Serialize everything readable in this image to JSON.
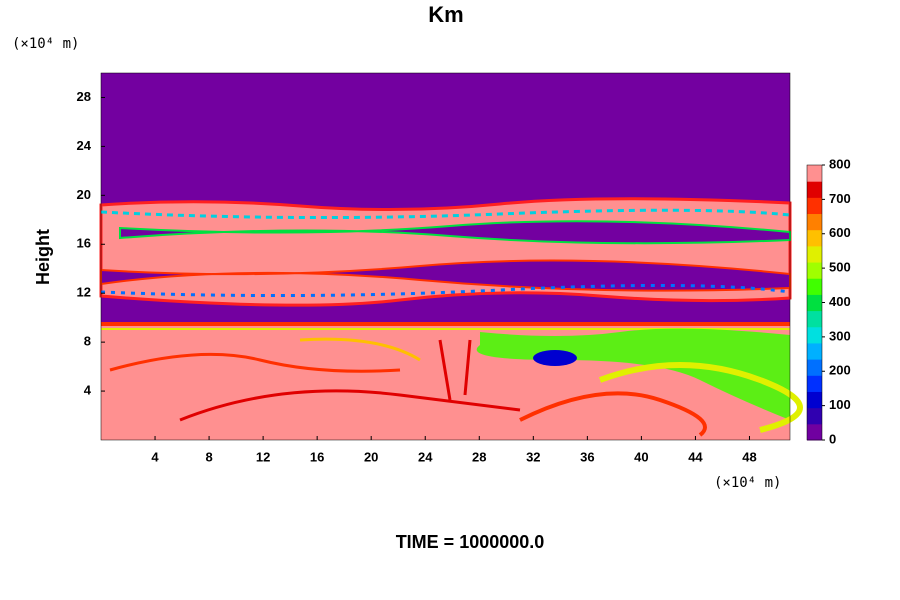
{
  "chart_data": {
    "type": "contour",
    "title": "Km",
    "ylabel": "Height",
    "x_unit": "(×10⁴ m)",
    "y_unit": "(×10⁴ m)",
    "footer": "TIME = 1000000.0",
    "xlim": [
      0,
      51
    ],
    "ylim": [
      0,
      30
    ],
    "xticks": [
      4,
      8,
      12,
      16,
      20,
      24,
      28,
      32,
      36,
      40,
      44,
      48
    ],
    "yticks": [
      4,
      8,
      12,
      16,
      20,
      24,
      28
    ],
    "colorbar": {
      "lim": [
        0,
        800
      ],
      "ticks": [
        0,
        100,
        200,
        300,
        400,
        500,
        600,
        700,
        800
      ],
      "colors": [
        "#7000a0",
        "#3000b0",
        "#0000d0",
        "#0030ff",
        "#0070ff",
        "#00b0ff",
        "#00e0e0",
        "#00e0a0",
        "#00e040",
        "#40ff00",
        "#a0ff00",
        "#e0f000",
        "#ffc000",
        "#ff8000",
        "#ff3000",
        "#e00000",
        "#ff9090"
      ]
    }
  }
}
